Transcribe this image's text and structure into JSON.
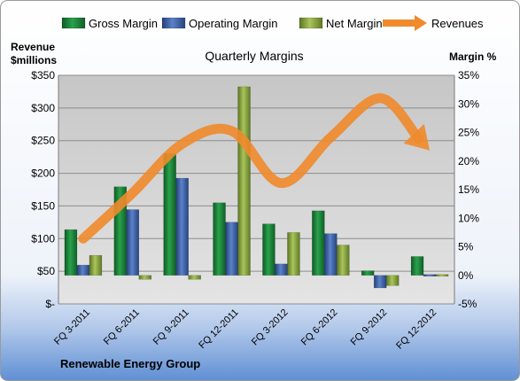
{
  "chart_data": {
    "type": "bar",
    "title": "Quarterly Margins",
    "footer": "Renewable Energy Group",
    "left_axis": {
      "label_line1": "Revenue",
      "label_line2": "$millions",
      "range": [
        0,
        350
      ],
      "ticks": [
        {
          "value": 0,
          "label": "$-"
        },
        {
          "value": 50,
          "label": "$50"
        },
        {
          "value": 100,
          "label": "$100"
        },
        {
          "value": 150,
          "label": "$150"
        },
        {
          "value": 200,
          "label": "$200"
        },
        {
          "value": 250,
          "label": "$250"
        },
        {
          "value": 300,
          "label": "$300"
        },
        {
          "value": 350,
          "label": "$350"
        }
      ]
    },
    "right_axis": {
      "label": "Margin %",
      "range": [
        -5,
        35
      ],
      "ticks": [
        {
          "value": -5,
          "label": "-5%"
        },
        {
          "value": 0,
          "label": "0%"
        },
        {
          "value": 5,
          "label": "5%"
        },
        {
          "value": 10,
          "label": "10%"
        },
        {
          "value": 15,
          "label": "15%"
        },
        {
          "value": 20,
          "label": "20%"
        },
        {
          "value": 25,
          "label": "25%"
        },
        {
          "value": 30,
          "label": "30%"
        },
        {
          "value": 35,
          "label": "35%"
        }
      ]
    },
    "categories": [
      "FQ 3-2011",
      "FQ 6-2011",
      "FQ 9-2011",
      "FQ 12-2011",
      "FQ 3-2012",
      "FQ 6-2012",
      "FQ 9-2012",
      "FQ 12-2012"
    ],
    "series": [
      {
        "name": "Gross Margin",
        "axis": "right",
        "color": "#1e8a3c",
        "values": [
          8.0,
          15.5,
          21.3,
          12.7,
          9.0,
          11.3,
          0.8,
          3.3
        ]
      },
      {
        "name": "Operating Margin",
        "axis": "right",
        "color": "#3c64b4",
        "values": [
          1.8,
          11.5,
          17.0,
          9.3,
          2.0,
          7.3,
          -2.2,
          -0.2
        ]
      },
      {
        "name": "Net Margin",
        "axis": "right",
        "color": "#8fb040",
        "values": [
          3.5,
          -0.7,
          -0.7,
          33.0,
          7.5,
          5.3,
          -1.8,
          0.0
        ]
      },
      {
        "name": "Revenues",
        "axis": "left",
        "type": "line",
        "color": "#f08a2c",
        "values": [
          100,
          170,
          245,
          265,
          185,
          255,
          315,
          235
        ]
      }
    ],
    "grid": true,
    "legend_position": "top"
  }
}
